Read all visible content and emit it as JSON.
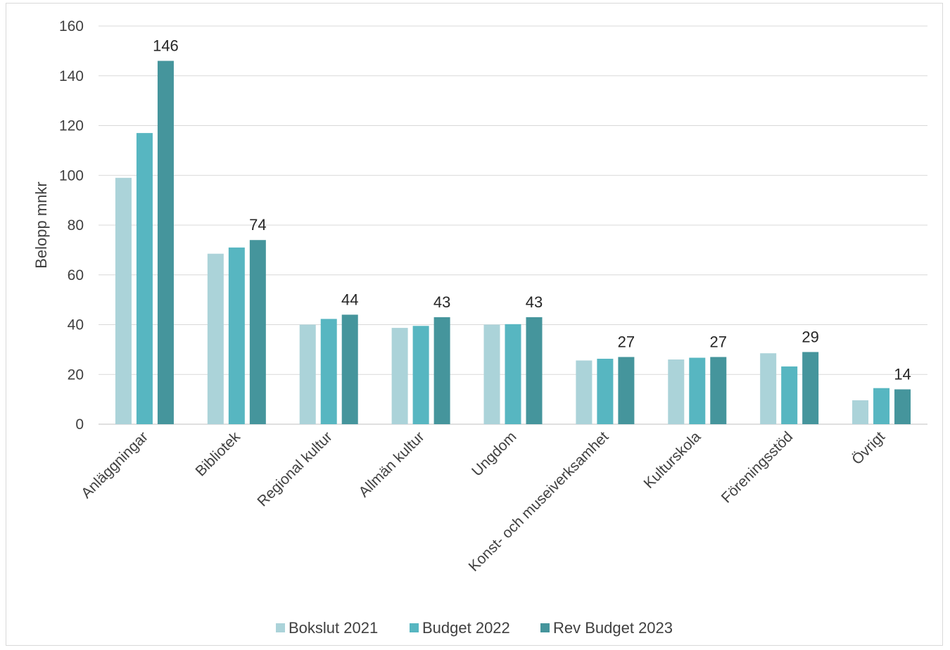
{
  "chart_data": {
    "type": "bar",
    "title": "",
    "xlabel": "",
    "ylabel": "Belopp mnkr",
    "ylim": [
      0,
      160
    ],
    "yticks": [
      0,
      20,
      40,
      60,
      80,
      100,
      120,
      140,
      160
    ],
    "grid": true,
    "legend_position": "bottom",
    "categories": [
      "Anläggningar",
      "Bibliotek",
      "Regional kultur",
      "Allmän kultur",
      "Ungdom",
      "Konst- och museiverksamhet",
      "Kulturskola",
      "Föreningsstöd",
      "Övrigt"
    ],
    "series": [
      {
        "name": "Bokslut 2021",
        "color": "#abd3d9",
        "values": [
          99,
          68.5,
          40,
          38.7,
          40,
          25.6,
          26,
          28.5,
          9.6
        ]
      },
      {
        "name": "Budget 2022",
        "color": "#57b6c1",
        "values": [
          117,
          71,
          42.3,
          39.5,
          40.2,
          26.3,
          26.7,
          23.2,
          14.5
        ]
      },
      {
        "name": "Rev Budget 2023",
        "color": "#45959c",
        "values": [
          146,
          74,
          44,
          43,
          43,
          27,
          27,
          29,
          14
        ]
      }
    ],
    "data_labels": {
      "series": "Rev Budget 2023",
      "values": [
        "146",
        "74",
        "44",
        "43",
        "43",
        "27",
        "27",
        "29",
        "14"
      ]
    }
  }
}
